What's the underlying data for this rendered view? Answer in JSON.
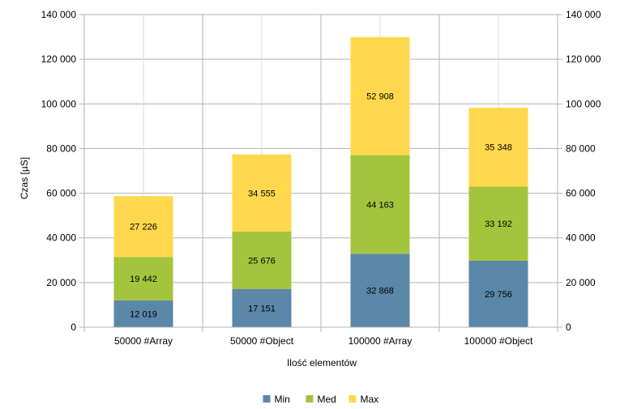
{
  "chart_data": {
    "type": "bar",
    "stacked": true,
    "categories": [
      "50000 #Array",
      "50000 #Object",
      "100000 #Array",
      "100000 #Object"
    ],
    "series": [
      {
        "name": "Min",
        "values": [
          12019,
          17151,
          32868,
          29756
        ],
        "labels": [
          "12 019",
          "17 151",
          "32 868",
          "29 756"
        ],
        "color": "#5b87a8"
      },
      {
        "name": "Med",
        "values": [
          19442,
          25676,
          44163,
          33192
        ],
        "labels": [
          "19 442",
          "25 676",
          "44 163",
          "33 192"
        ],
        "color": "#a3c43c"
      },
      {
        "name": "Max",
        "values": [
          27226,
          34555,
          52908,
          35348
        ],
        "labels": [
          "27 226",
          "34 555",
          "52 908",
          "35 348"
        ],
        "color": "#ffd84d"
      }
    ],
    "title": "",
    "xlabel": "Ilość elementów",
    "ylabel": "Czas [µS]",
    "ylim": [
      0,
      140000
    ],
    "yticks": [
      0,
      20000,
      40000,
      60000,
      80000,
      100000,
      120000,
      140000
    ],
    "ytick_labels": [
      "0",
      "20 000",
      "40 000",
      "60 000",
      "80 000",
      "100 000",
      "120 000",
      "140 000"
    ],
    "secondary_y_axis": true,
    "grid": true,
    "legend_position": "bottom"
  }
}
